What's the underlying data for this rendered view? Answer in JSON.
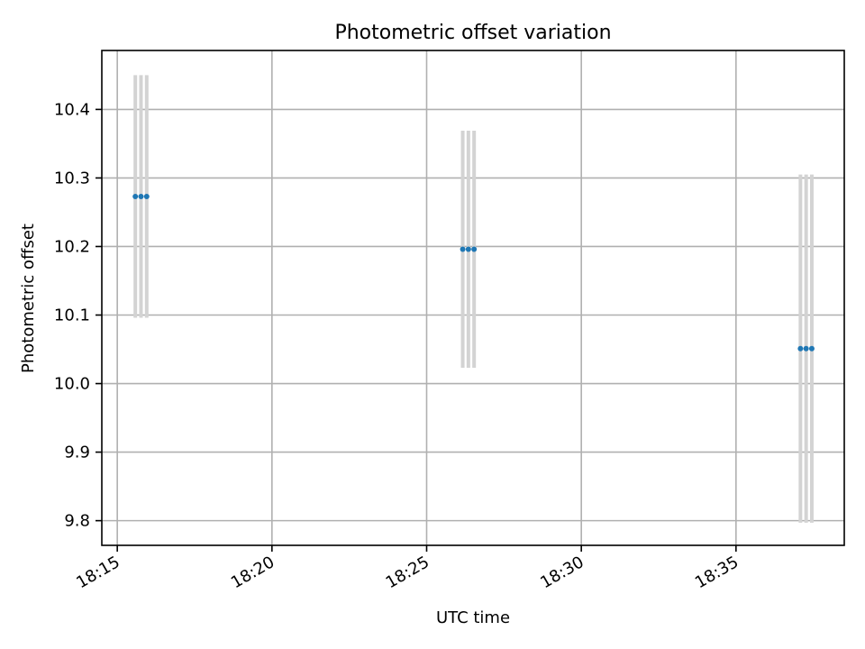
{
  "chart_data": {
    "type": "scatter",
    "title": "Photometric offset variation",
    "xlabel": "UTC time",
    "ylabel": "Photometric offset",
    "x_axis": {
      "type": "time",
      "range": [
        "18:14:30",
        "18:38:30"
      ],
      "ticks": [
        "18:15",
        "18:20",
        "18:25",
        "18:30",
        "18:35"
      ]
    },
    "y_axis": {
      "range": [
        9.764,
        10.486
      ],
      "ticks": [
        9.8,
        9.9,
        10.0,
        10.1,
        10.2,
        10.3,
        10.4
      ],
      "tick_labels": [
        "9.8",
        "9.9",
        "10.0",
        "10.1",
        "10.2",
        "10.3",
        "10.4"
      ]
    },
    "grid": true,
    "series": [
      {
        "marker_color": "#1f77b4",
        "error_color": "#d3d3d3",
        "points": [
          {
            "x": "18:15:35",
            "y": 10.273,
            "yerr": 0.177
          },
          {
            "x": "18:15:46",
            "y": 10.273,
            "yerr": 0.177
          },
          {
            "x": "18:15:57",
            "y": 10.273,
            "yerr": 0.177
          },
          {
            "x": "18:26:10",
            "y": 10.196,
            "yerr": 0.173
          },
          {
            "x": "18:26:21",
            "y": 10.196,
            "yerr": 0.173
          },
          {
            "x": "18:26:32",
            "y": 10.196,
            "yerr": 0.173
          },
          {
            "x": "18:37:05",
            "y": 10.051,
            "yerr": 0.254
          },
          {
            "x": "18:37:16",
            "y": 10.051,
            "yerr": 0.254
          },
          {
            "x": "18:37:27",
            "y": 10.051,
            "yerr": 0.254
          }
        ]
      }
    ]
  }
}
